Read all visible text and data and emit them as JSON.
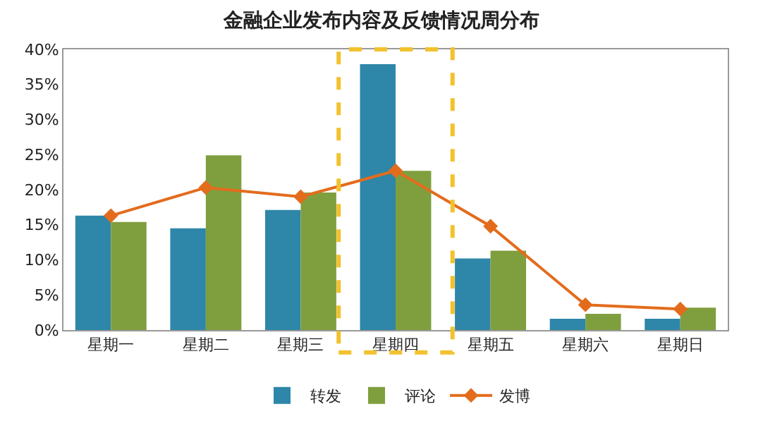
{
  "chart_data": {
    "type": "bar",
    "title": "金融企业发布内容及反馈情况周分布",
    "categories": [
      "星期一",
      "星期二",
      "星期三",
      "星期四",
      "星期五",
      "星期六",
      "星期日"
    ],
    "series": [
      {
        "name": "转发",
        "color": "#2e86a8",
        "values": [
          16.3,
          14.5,
          17.1,
          37.9,
          10.2,
          1.6,
          1.6
        ]
      },
      {
        "name": "评论",
        "color": "#7f9f3e",
        "values": [
          15.4,
          24.9,
          19.6,
          22.7,
          11.3,
          2.3,
          3.2
        ]
      },
      {
        "name": "发博",
        "type": "line",
        "color": "#e36c1c",
        "marker": "diamond",
        "values": [
          16.3,
          20.3,
          19.0,
          22.7,
          14.8,
          3.6,
          3.0
        ]
      }
    ],
    "ylim": [
      0,
      40
    ],
    "yticks": [
      {
        "value": 0,
        "label": "0%"
      },
      {
        "value": 5,
        "label": "5%"
      },
      {
        "value": 10,
        "label": "10%"
      },
      {
        "value": 15,
        "label": "15%"
      },
      {
        "value": 20,
        "label": "20%"
      },
      {
        "value": 25,
        "label": "25%"
      },
      {
        "value": 30,
        "label": "30%"
      },
      {
        "value": 35,
        "label": "35%"
      },
      {
        "value": 40,
        "label": "40%"
      }
    ],
    "legend": "bottom"
  }
}
